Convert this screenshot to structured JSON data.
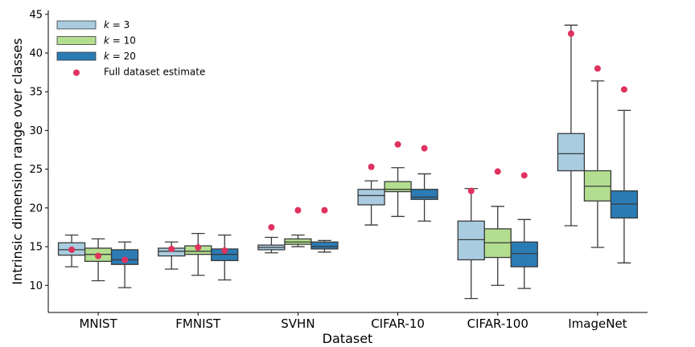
{
  "chart_data": {
    "type": "box",
    "title": "",
    "xlabel": "Dataset",
    "ylabel": "Intrinsic dimension range over classes",
    "ylim": [
      6.5,
      45.5
    ],
    "yticks": [
      10,
      15,
      20,
      25,
      30,
      35,
      40,
      45
    ],
    "categories": [
      "MNIST",
      "FMNIST",
      "SVHN",
      "CIFAR-10",
      "CIFAR-100",
      "ImageNet"
    ],
    "series": [
      {
        "name": "k = 3",
        "legend_prefix": "k",
        "legend_suffix": " = 3",
        "color": "#a9cce0",
        "boxes": [
          {
            "whisker_low": 12.4,
            "q1": 13.9,
            "median": 14.6,
            "q3": 15.5,
            "whisker_high": 16.5
          },
          {
            "whisker_low": 12.1,
            "q1": 13.8,
            "median": 14.4,
            "q3": 14.8,
            "whisker_high": 15.6
          },
          {
            "whisker_low": 14.2,
            "q1": 14.6,
            "median": 14.9,
            "q3": 15.2,
            "whisker_high": 16.2
          },
          {
            "whisker_low": 17.8,
            "q1": 20.4,
            "median": 21.6,
            "q3": 22.4,
            "whisker_high": 23.5
          },
          {
            "whisker_low": 8.3,
            "q1": 13.3,
            "median": 15.9,
            "q3": 18.3,
            "whisker_high": 22.5
          },
          {
            "whisker_low": 17.7,
            "q1": 24.8,
            "median": 27.0,
            "q3": 29.6,
            "whisker_high": 43.6
          }
        ]
      },
      {
        "name": "k = 10",
        "legend_prefix": "k",
        "legend_suffix": " = 10",
        "color": "#b3de8f",
        "boxes": [
          {
            "whisker_low": 10.6,
            "q1": 13.1,
            "median": 14.0,
            "q3": 14.8,
            "whisker_high": 16.0
          },
          {
            "whisker_low": 11.3,
            "q1": 14.0,
            "median": 14.4,
            "q3": 15.1,
            "whisker_high": 16.7
          },
          {
            "whisker_low": 15.0,
            "q1": 15.3,
            "median": 15.6,
            "q3": 16.0,
            "whisker_high": 16.5
          },
          {
            "whisker_low": 18.9,
            "q1": 22.1,
            "median": 22.4,
            "q3": 23.4,
            "whisker_high": 25.2
          },
          {
            "whisker_low": 10.0,
            "q1": 13.6,
            "median": 15.5,
            "q3": 17.3,
            "whisker_high": 20.2
          },
          {
            "whisker_low": 14.9,
            "q1": 20.9,
            "median": 22.8,
            "q3": 24.8,
            "whisker_high": 36.4
          }
        ]
      },
      {
        "name": "k = 20",
        "legend_prefix": "k",
        "legend_suffix": " = 20",
        "color": "#2b7bb4",
        "boxes": [
          {
            "whisker_low": 9.7,
            "q1": 12.7,
            "median": 13.3,
            "q3": 14.6,
            "whisker_high": 15.6
          },
          {
            "whisker_low": 10.7,
            "q1": 13.2,
            "median": 14.0,
            "q3": 14.7,
            "whisker_high": 16.5
          },
          {
            "whisker_low": 14.3,
            "q1": 14.7,
            "median": 15.0,
            "q3": 15.6,
            "whisker_high": 15.8
          },
          {
            "whisker_low": 18.3,
            "q1": 21.1,
            "median": 21.4,
            "q3": 22.4,
            "whisker_high": 24.4
          },
          {
            "whisker_low": 9.6,
            "q1": 12.4,
            "median": 14.1,
            "q3": 15.6,
            "whisker_high": 18.5
          },
          {
            "whisker_low": 12.9,
            "q1": 18.7,
            "median": 20.5,
            "q3": 22.2,
            "whisker_high": 32.6
          }
        ]
      }
    ],
    "full_dataset_estimate": {
      "name": "Full dataset estimate",
      "color": "#e0325f",
      "values": [
        [
          14.6,
          13.8,
          13.3
        ],
        [
          14.7,
          14.9,
          14.5
        ],
        [
          17.5,
          19.7,
          19.7
        ],
        [
          25.3,
          28.2,
          27.7
        ],
        [
          22.2,
          24.7,
          24.2
        ],
        [
          42.5,
          38.0,
          35.3
        ]
      ]
    },
    "legend_position": "top-left",
    "grid": false
  }
}
